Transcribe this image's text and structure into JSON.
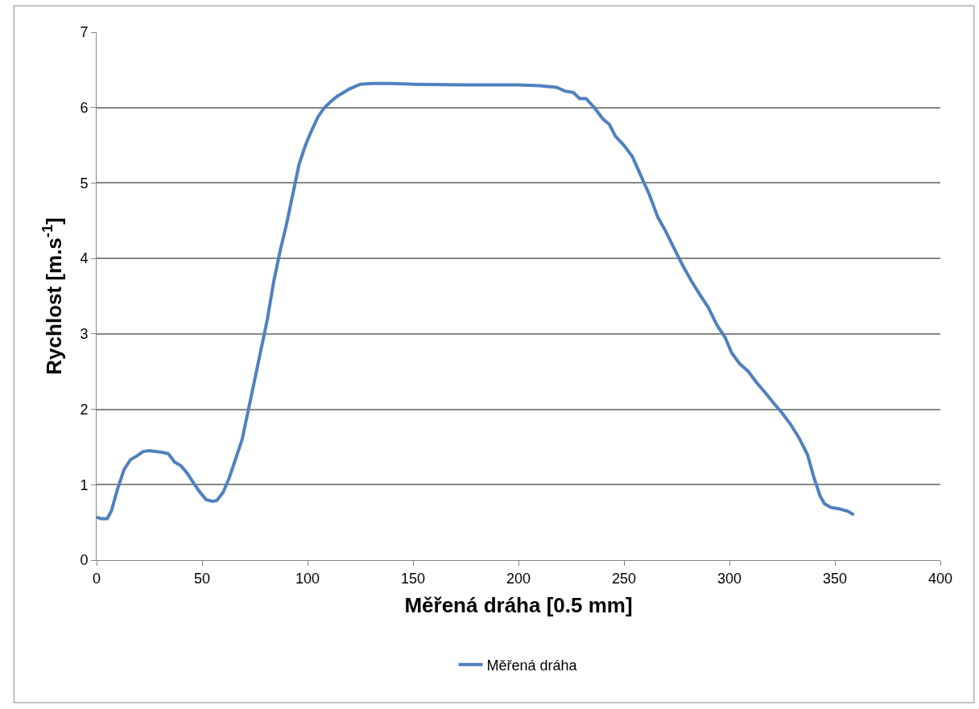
{
  "chart_data": {
    "type": "line",
    "xlabel": "Měřená dráha [0.5 mm]",
    "ylabel": "Rychlost [m.s$^{-1}$]",
    "xlim": [
      0,
      400
    ],
    "xticks": [
      0,
      50,
      100,
      150,
      200,
      250,
      300,
      350,
      400
    ],
    "ylim": [
      0,
      7
    ],
    "yticks": [
      0,
      1,
      2,
      3,
      4,
      5,
      6,
      7
    ],
    "grid": "y",
    "legend": "bottom",
    "series": [
      {
        "name": "Měřená dráha",
        "color": "#4f81bd",
        "x": [
          0,
          2,
          5,
          7,
          10,
          13,
          16,
          19,
          22,
          25,
          28,
          31,
          34,
          37,
          40,
          43,
          46,
          49,
          52,
          55,
          57,
          60,
          63,
          66,
          69,
          72,
          75,
          78,
          81,
          84,
          87,
          90,
          93,
          96,
          99,
          102,
          105,
          108,
          111,
          114,
          117,
          120,
          125,
          130,
          140,
          150,
          175,
          200,
          210,
          218,
          222,
          226,
          229,
          232,
          236,
          240,
          243,
          246,
          250,
          254,
          258,
          262,
          266,
          270,
          274,
          278,
          282,
          286,
          290,
          294,
          298,
          301,
          305,
          309,
          313,
          317,
          321,
          325,
          329,
          333,
          337,
          340,
          343,
          345,
          348,
          352,
          356,
          359
        ],
        "values": [
          0.57,
          0.55,
          0.55,
          0.65,
          0.95,
          1.2,
          1.33,
          1.38,
          1.44,
          1.45,
          1.44,
          1.43,
          1.41,
          1.3,
          1.25,
          1.15,
          1.02,
          0.9,
          0.8,
          0.78,
          0.79,
          0.9,
          1.1,
          1.35,
          1.6,
          2.0,
          2.4,
          2.8,
          3.2,
          3.7,
          4.1,
          4.45,
          4.85,
          5.25,
          5.5,
          5.7,
          5.88,
          6.0,
          6.08,
          6.15,
          6.2,
          6.25,
          6.31,
          6.32,
          6.32,
          6.31,
          6.3,
          6.3,
          6.29,
          6.27,
          6.22,
          6.2,
          6.12,
          6.12,
          6.0,
          5.85,
          5.78,
          5.62,
          5.5,
          5.35,
          5.1,
          4.85,
          4.55,
          4.35,
          4.12,
          3.9,
          3.7,
          3.52,
          3.35,
          3.12,
          2.95,
          2.75,
          2.6,
          2.5,
          2.35,
          2.22,
          2.08,
          1.95,
          1.8,
          1.62,
          1.4,
          1.1,
          0.85,
          0.75,
          0.7,
          0.68,
          0.65,
          0.6
        ]
      }
    ]
  }
}
